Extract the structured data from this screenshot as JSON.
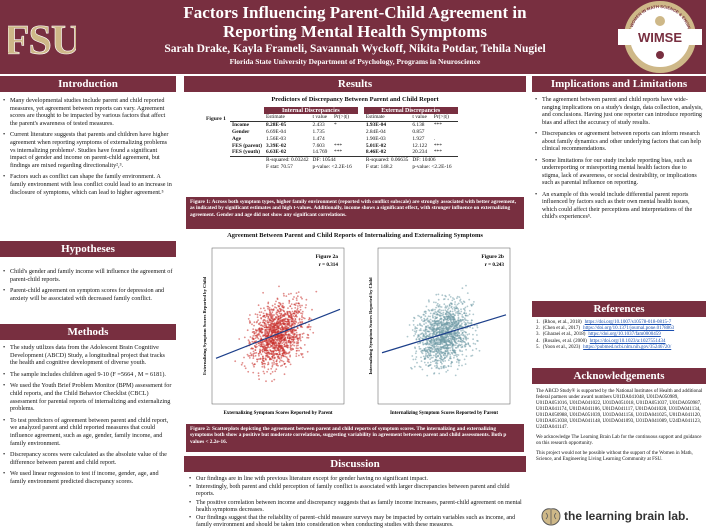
{
  "header": {
    "logo_text": "FSU",
    "title_line1": "Factors Influencing Parent-Child Agreement in",
    "title_line2": "Reporting Mental Health Symptoms",
    "authors": "Sarah Drake, Kayla Frameli, Savannah Wyckoff, Nikita Potdar, Tehila Nugiel",
    "affiliation": "Florida State University Department of Psychology, Programs in Neuroscience",
    "wimse_text": "WIMSE",
    "wimse_ring": "THE WOMEN IN MATH SCIENCE & ENGINEERING"
  },
  "colors": {
    "garnet": "#782f40",
    "gold": "#ceb888"
  },
  "introduction": {
    "heading": "Introduction",
    "bullets": [
      "Many developmental studies include parent and child reported measures, yet agreement between reports can vary. Agreement scores are thought to be impacted by various factors that affect the parent's awareness of tested measures.",
      "Current literature suggests that parents and children have higher agreement when reporting symptoms of externalizing problems vs internalizing problems¹. Studies have found a significant impact of gender and income on parent-child agreement, but findings are mixed regarding directionality²,³.",
      "Factors such as conflict can shape the family environment. A family environment with less conflict could lead to an increase in disclosure of symptoms, which can lead to higher agreement.⁵"
    ]
  },
  "hypotheses": {
    "heading": "Hypotheses",
    "bullets": [
      "Child's gender and family income will influence the agreement of parent-child reports.",
      "Parent-child agreement on symptom scores for depression and anxiety will be associated with decreased family conflict."
    ]
  },
  "methods": {
    "heading": "Methods",
    "bullets": [
      "The study utilizes data from the Adolescent Brain Cognitive Development (ABCD) Study, a longitudinal project that tracks the health and cognitive development of diverse youth.",
      "The sample includes children aged 9-10 (F =5664 , M = 6181).",
      "We used the Youth Brief Problem Monitor (BPM) assessment for child reports, and the Child Behavior Checklist (CBCL) assessment for parental reports of internalizing and externalizing problems.",
      "To test predictors of agreement between parent and child report, we analyzed parent and child reported measures that could influence agreement, such as age, gender, family income, and family environment.",
      "Discrepancy scores were calculated as the absolute value of the difference between parent and child report.",
      "We used linear regression to test if income, gender, age, and family environment predicted discrepancy scores."
    ]
  },
  "results": {
    "heading": "Results",
    "table_title": "Predictors of Discrepancy Between Parent and Child Report",
    "figure_label": "Figure 1",
    "group1": "Internal Discrepancies",
    "group2": "External Discrepancies",
    "col_estimate": "Estimate",
    "col_t": "t value",
    "col_p": "Pr(>|t|)",
    "rows": [
      {
        "name": "Income",
        "e1": "8.28E-05",
        "t1": "2.433",
        "s1": "*",
        "e2": "1.93E-04",
        "t2": "6.138",
        "s2": "***",
        "bold": true
      },
      {
        "name": "Gender",
        "e1": "6.69E-04",
        "t1": "1.735",
        "s1": "",
        "e2": "2.84E-04",
        "t2": "0.857",
        "s2": "",
        "bold": false
      },
      {
        "name": "Age",
        "e1": "1.56E-03",
        "t1": "1.474",
        "s1": "",
        "e2": "1.90E-03",
        "t2": "1.927",
        "s2": ".",
        "bold": false
      },
      {
        "name": "FES (parent)",
        "e1": "3.39E-02",
        "t1": "7.603",
        "s1": "***",
        "e2": "5.01E-02",
        "t2": "12.122",
        "s2": "***",
        "bold": true
      },
      {
        "name": "FES (youth)",
        "e1": "6.63E-02",
        "t1": "14.769",
        "s1": "***",
        "e2": "8.46E-02",
        "t2": "20.234",
        "s2": "***",
        "bold": true
      }
    ],
    "stats1_r2": "R-squared: 0.03242",
    "stats1_df": "DF: 10544",
    "stats1_f": "F stat: 70.57",
    "stats1_p": "p-value: <2.2E-16",
    "stats2_r2": "R-squared: 0.06635",
    "stats2_df": "DF: 10406",
    "stats2_f": "F stat: 148.2",
    "stats2_p": "p-value: <2.2E-16",
    "fig1_caption": "Figure 1: Across both symptom types, higher family environment (reported with conflict subscale) are strongly associated with better agreement, as indicated by significant estimates and high t-values. Additionally, income shows a significant effect, with stronger influence on externalizing agreement. Gender and age did not show any significant correlations.",
    "scatter_title": "Agreement Between Parent and Child Reports of Internalizing and Externalizing Symptoms",
    "fig2_caption": "Figure 2: Scatterplots depicting the agreement between parent and child reports of symptom scores. The internalizing and externalizing symptoms both show a positive but moderate correlations, suggesting variability in agreement between parent and child assessments. Both p values < 2.2e-16."
  },
  "chart_data": [
    {
      "type": "scatter",
      "title": "Figure 2a",
      "annotation": "r = 0.314",
      "xlabel": "Externalizing Symptom Scores Reported by Parent",
      "ylabel": "Externalizing Symptom Scores Reported by Child",
      "color": "#c8302c",
      "r": 0.314
    },
    {
      "type": "scatter",
      "title": "Figure 2b",
      "annotation": "r = 0.243",
      "xlabel": "Internalizing Symptom Scores Reported by Parent",
      "ylabel": "Internalizing Symptom Scores Reported by Child",
      "color": "#6f9aa6",
      "r": 0.243
    }
  ],
  "discussion": {
    "heading": "Discussion",
    "bullets": [
      "Our findings are in line with previous literature except for gender having no significant impact.",
      "Interestingly, both parent and child perception of family conflict is associated with larger discrepancies between parent and child reports.",
      "The positive correlation between income and discrepancy suggests that as family income increases, parent-child agreement on mental health symptoms decreases.",
      "Our findings suggest that the reliability of parent–child measure surveys may be impacted by certain variables such as income, and family environment and should be taken into consideration when conducting studies with these measures."
    ]
  },
  "implications": {
    "heading": "Implications and Limitations",
    "bullets": [
      "The agreement between parent and child reports have wide-ranging implications on a study's design, data collection, analysis, and conclusions. Having just one reporter can introduce reporting bias and affect the accuracy of study results.",
      "Discrepancies or agreement between reports can inform research about family dynamics and other underlying factors that can help clinical recommendations.",
      "Some limitations for our study include reporting bias, such as underreporting or misreporting mental health factors due to stigma, lack of awareness, or social desirability, or implications such as parental influence on reporting.",
      "An example of this would include differential parent reports influenced by factors such as their own mental health issues, which could affect their perceptions and interpretations of the child's experiences⁵."
    ]
  },
  "references": {
    "heading": "References",
    "items": [
      {
        "n": "1.",
        "cite": "(Rhoo, et al., 2018)",
        "url": "https://doi.org/10.1007/s10578-018-0815-7"
      },
      {
        "n": "2.",
        "cite": "(Chen et al., 2017)",
        "url": "https://doi.org/10.1371/journal.pone.0178863"
      },
      {
        "n": "3.",
        "cite": "(Gharaei et al., 2018)",
        "url": "https://doi.org/10.1037/fam0000459"
      },
      {
        "n": "4.",
        "cite": "(Rosales, et al. (2000)",
        "url": "https://doi.org/10.1023/a:1027551434"
      },
      {
        "n": "5.",
        "cite": "(Yoon et al., 2023)",
        "url": "https://pubmed.ncbi.nlm.nih.gov/35246720/"
      }
    ]
  },
  "acknowledgements": {
    "heading": "Acknowledgements",
    "p1": "The ABCD Study® is supported by the National Institutes of Health and additional federal partners under award numbers U01DA041048, U01DA050989, U01DA051016, U01DA041022, U01DA051018, U01DA051037, U01DA050987, U01DA041174, U01DA041106, U01DA041117, U01DA041028, U01DA041134, U01DA050988, U01DA051039, U01DA041156, U01DA041025, U01DA041120, U01DA051038, U01DA041148, U01DA041093, U01DA041089, U24DA041123, U24DA041147.",
    "p2": "We acknowledge The Learning Brain Lab for the continuous support and guidance on this research opportunity.",
    "p3": "This project would not be possible without the support of the Women in Math, Science, and Engineering Living Learning Community at FSU.",
    "lab_name": "the learning brain lab."
  }
}
